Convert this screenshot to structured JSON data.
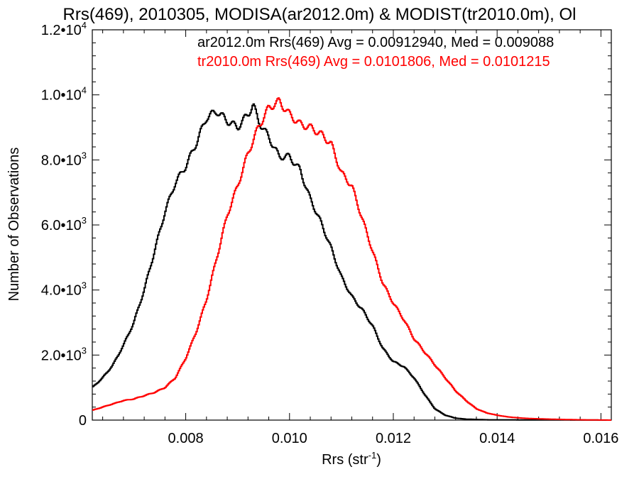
{
  "chart_data": {
    "type": "line",
    "title": "Rrs(469), 2010305, MODISA(ar2012.0m) & MODIST(tr2010.0m), Ol",
    "xlabel": "Rrs (str",
    "xlabel_sup": "-1",
    "xlabel_suffix": ")",
    "ylabel": "Number of Observations",
    "xlim": [
      0.0062,
      0.0162
    ],
    "ylim": [
      0,
      12000
    ],
    "x_ticks": [
      0.008,
      0.01,
      0.012,
      0.014,
      0.016
    ],
    "x_tick_labels": [
      "0.008",
      "0.010",
      "0.012",
      "0.014",
      "0.016"
    ],
    "y_ticks": [
      0,
      2000,
      4000,
      6000,
      8000,
      10000,
      12000
    ],
    "y_tick_labels": [
      {
        "mantissa": "0",
        "exp": ""
      },
      {
        "mantissa": "2.0•10",
        "exp": "3"
      },
      {
        "mantissa": "4.0•10",
        "exp": "3"
      },
      {
        "mantissa": "6.0•10",
        "exp": "3"
      },
      {
        "mantissa": "8.0•10",
        "exp": "3"
      },
      {
        "mantissa": "1.0•10",
        "exp": "4"
      },
      {
        "mantissa": "1.2•10",
        "exp": "4"
      }
    ],
    "step": true,
    "legend_position": "top-right",
    "series": [
      {
        "name": "ar2012.0m Rrs(469) Avg = 0.00912940, Med = 0.009088",
        "color": "#000000",
        "points": [
          [
            0.0062,
            1000
          ],
          [
            0.0064,
            1300
          ],
          [
            0.0066,
            1700
          ],
          [
            0.0068,
            2300
          ],
          [
            0.007,
            3000
          ],
          [
            0.0072,
            4000
          ],
          [
            0.0074,
            5200
          ],
          [
            0.0076,
            6400
          ],
          [
            0.0078,
            7300
          ],
          [
            0.008,
            7800
          ],
          [
            0.0082,
            8500
          ],
          [
            0.0084,
            9300
          ],
          [
            0.0086,
            9500
          ],
          [
            0.0088,
            9200
          ],
          [
            0.009,
            9000
          ],
          [
            0.0092,
            9400
          ],
          [
            0.0093,
            9700
          ],
          [
            0.0094,
            9200
          ],
          [
            0.0096,
            8700
          ],
          [
            0.0098,
            8100
          ],
          [
            0.01,
            8100
          ],
          [
            0.0102,
            7700
          ],
          [
            0.0104,
            6800
          ],
          [
            0.0106,
            6100
          ],
          [
            0.0108,
            5300
          ],
          [
            0.011,
            4400
          ],
          [
            0.0112,
            3800
          ],
          [
            0.0114,
            3400
          ],
          [
            0.0116,
            2900
          ],
          [
            0.0118,
            2200
          ],
          [
            0.012,
            1800
          ],
          [
            0.0122,
            1650
          ],
          [
            0.0124,
            1300
          ],
          [
            0.0126,
            800
          ],
          [
            0.0128,
            350
          ],
          [
            0.013,
            150
          ],
          [
            0.0132,
            60
          ],
          [
            0.0134,
            30
          ],
          [
            0.0138,
            10
          ],
          [
            0.0162,
            0
          ]
        ]
      },
      {
        "name": "tr2010.0m Rrs(469) Avg = 0.0101806, Med = 0.0101215",
        "color": "#ff0000",
        "points": [
          [
            0.0062,
            300
          ],
          [
            0.0064,
            400
          ],
          [
            0.0066,
            500
          ],
          [
            0.0068,
            600
          ],
          [
            0.007,
            650
          ],
          [
            0.0072,
            750
          ],
          [
            0.0074,
            850
          ],
          [
            0.0076,
            1000
          ],
          [
            0.0078,
            1300
          ],
          [
            0.008,
            1900
          ],
          [
            0.0082,
            2700
          ],
          [
            0.0084,
            3700
          ],
          [
            0.0086,
            5000
          ],
          [
            0.0088,
            6300
          ],
          [
            0.009,
            7200
          ],
          [
            0.0092,
            8200
          ],
          [
            0.0094,
            9000
          ],
          [
            0.0096,
            9600
          ],
          [
            0.0098,
            9800
          ],
          [
            0.01,
            9400
          ],
          [
            0.0102,
            9100
          ],
          [
            0.0104,
            9000
          ],
          [
            0.0106,
            8800
          ],
          [
            0.0108,
            8500
          ],
          [
            0.011,
            7600
          ],
          [
            0.0112,
            7200
          ],
          [
            0.0114,
            6200
          ],
          [
            0.0116,
            5200
          ],
          [
            0.0118,
            4200
          ],
          [
            0.012,
            3600
          ],
          [
            0.0122,
            3100
          ],
          [
            0.0124,
            2500
          ],
          [
            0.0126,
            2100
          ],
          [
            0.0128,
            1700
          ],
          [
            0.013,
            1300
          ],
          [
            0.0132,
            900
          ],
          [
            0.0134,
            600
          ],
          [
            0.0136,
            350
          ],
          [
            0.0138,
            220
          ],
          [
            0.014,
            150
          ],
          [
            0.0142,
            100
          ],
          [
            0.0144,
            70
          ],
          [
            0.0146,
            50
          ],
          [
            0.0148,
            40
          ],
          [
            0.015,
            30
          ],
          [
            0.0154,
            15
          ],
          [
            0.0158,
            5
          ],
          [
            0.0162,
            0
          ]
        ]
      }
    ]
  }
}
